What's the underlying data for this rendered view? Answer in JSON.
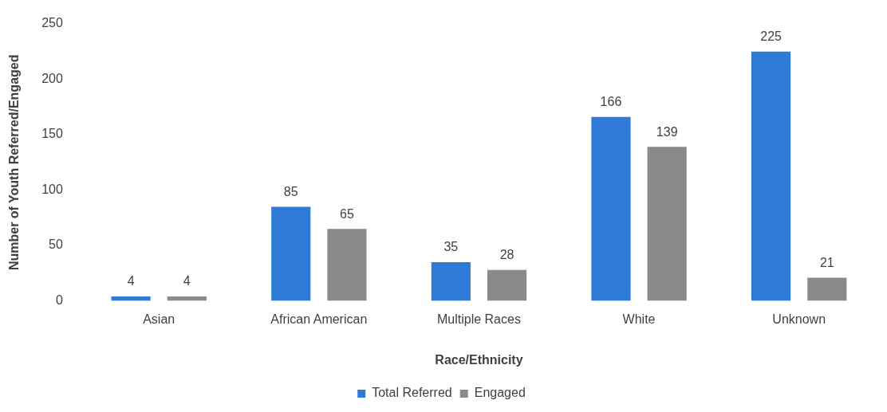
{
  "chart_data": {
    "type": "bar",
    "xlabel": "Race/Ethnicity",
    "ylabel": "Number of Youth Referred/Engaged",
    "categories": [
      "Asian",
      "African American",
      "Multiple Races",
      "White",
      "Unknown"
    ],
    "series": [
      {
        "name": "Total Referred",
        "color": "#2f7ad6",
        "values": [
          4,
          85,
          35,
          166,
          225
        ]
      },
      {
        "name": "Engaged",
        "color": "#8a8a8a",
        "values": [
          4,
          65,
          28,
          139,
          21
        ]
      }
    ],
    "ylim": [
      0,
      250
    ],
    "yticks": [
      0,
      50,
      100,
      150,
      200,
      250
    ],
    "grid": false,
    "legend": "bottom",
    "data_labels": true
  }
}
